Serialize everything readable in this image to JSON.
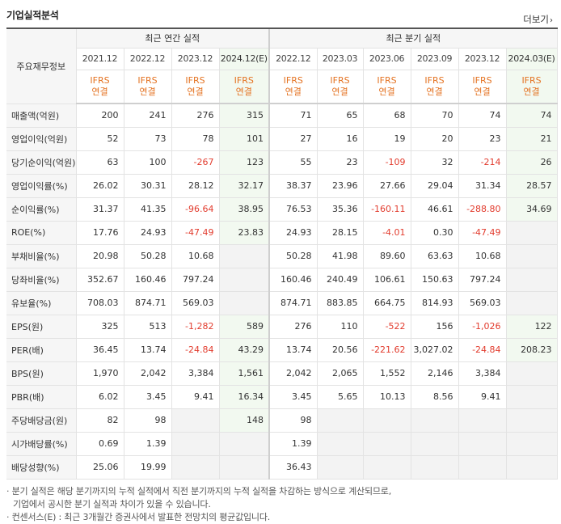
{
  "header": {
    "title": "기업실적분석",
    "more": "더보기"
  },
  "table": {
    "label_header": "주요재무정보",
    "annual_group": "최근 연간 실적",
    "quarter_group": "최근 분기 실적",
    "years": [
      "2021.12",
      "2022.12",
      "2023.12",
      "2024.12(E)"
    ],
    "quarters": [
      "2022.12",
      "2023.03",
      "2023.06",
      "2023.09",
      "2023.12",
      "2024.03(E)"
    ],
    "ifrs": "IFRS",
    "consolidated": "연결",
    "rows": [
      {
        "label": "매출액(억원)",
        "annual": [
          "200",
          "241",
          "276",
          "315"
        ],
        "quarter": [
          "71",
          "65",
          "68",
          "70",
          "74",
          "74"
        ]
      },
      {
        "label": "영업이익(억원)",
        "annual": [
          "52",
          "73",
          "78",
          "101"
        ],
        "quarter": [
          "27",
          "16",
          "19",
          "20",
          "23",
          "21"
        ]
      },
      {
        "label": "당기순이익(억원)",
        "annual": [
          "63",
          "100",
          "-267",
          "123"
        ],
        "quarter": [
          "55",
          "23",
          "-109",
          "32",
          "-214",
          "26"
        ]
      },
      {
        "label": "영업이익률(%)",
        "annual": [
          "26.02",
          "30.31",
          "28.12",
          "32.17"
        ],
        "quarter": [
          "38.37",
          "23.96",
          "27.66",
          "29.04",
          "31.34",
          "28.57"
        ]
      },
      {
        "label": "순이익률(%)",
        "annual": [
          "31.37",
          "41.35",
          "-96.64",
          "38.95"
        ],
        "quarter": [
          "76.53",
          "35.36",
          "-160.11",
          "46.61",
          "-288.80",
          "34.69"
        ]
      },
      {
        "label": "ROE(%)",
        "annual": [
          "17.76",
          "24.93",
          "-47.49",
          "23.83"
        ],
        "quarter": [
          "24.93",
          "28.15",
          "-4.01",
          "0.30",
          "-47.49",
          ""
        ]
      },
      {
        "label": "부채비율(%)",
        "annual": [
          "20.98",
          "50.28",
          "10.68",
          ""
        ],
        "quarter": [
          "50.28",
          "41.98",
          "89.60",
          "63.63",
          "10.68",
          ""
        ]
      },
      {
        "label": "당좌비율(%)",
        "annual": [
          "352.67",
          "160.46",
          "797.24",
          ""
        ],
        "quarter": [
          "160.46",
          "240.49",
          "106.61",
          "150.63",
          "797.24",
          ""
        ]
      },
      {
        "label": "유보율(%)",
        "annual": [
          "708.03",
          "874.71",
          "569.03",
          ""
        ],
        "quarter": [
          "874.71",
          "883.85",
          "664.75",
          "814.93",
          "569.03",
          ""
        ]
      },
      {
        "label": "EPS(원)",
        "annual": [
          "325",
          "513",
          "-1,282",
          "589"
        ],
        "quarter": [
          "276",
          "110",
          "-522",
          "156",
          "-1,026",
          "122"
        ]
      },
      {
        "label": "PER(배)",
        "annual": [
          "36.45",
          "13.74",
          "-24.84",
          "43.29"
        ],
        "quarter": [
          "13.74",
          "20.56",
          "-221.62",
          "3,027.02",
          "-24.84",
          "208.23"
        ]
      },
      {
        "label": "BPS(원)",
        "annual": [
          "1,970",
          "2,042",
          "3,384",
          "1,561"
        ],
        "quarter": [
          "2,042",
          "2,065",
          "1,552",
          "2,146",
          "3,384",
          ""
        ]
      },
      {
        "label": "PBR(배)",
        "annual": [
          "6.02",
          "3.45",
          "9.41",
          "16.34"
        ],
        "quarter": [
          "3.45",
          "5.65",
          "10.13",
          "8.56",
          "9.41",
          ""
        ]
      },
      {
        "label": "주당배당금(원)",
        "annual": [
          "82",
          "98",
          "",
          "148"
        ],
        "quarter": [
          "98",
          "",
          "",
          "",
          "",
          ""
        ]
      },
      {
        "label": "시가배당률(%)",
        "annual": [
          "0.69",
          "1.39",
          "",
          ""
        ],
        "quarter": [
          "1.39",
          "",
          "",
          "",
          "",
          ""
        ]
      },
      {
        "label": "배당성향(%)",
        "annual": [
          "25.06",
          "19.99",
          "",
          ""
        ],
        "quarter": [
          "36.43",
          "",
          "",
          "",
          "",
          ""
        ]
      }
    ]
  },
  "notes": [
    "· 분기 실적은 해당 분기까지의 누적 실적에서 직전 분기까지의 누적 실적을 차감하는 방식으로 계산되므로,",
    "기업에서 공시한 분기 실적과 차이가 있을 수 있습니다.",
    "· 컨센서스(E) : 최근 3개월간 증권사에서 발표한 전망치의 평균값입니다."
  ],
  "colors": {
    "negative": "#e23c2e",
    "ifrs": "#e47221",
    "estimate_bg": "#f2f9f0"
  }
}
